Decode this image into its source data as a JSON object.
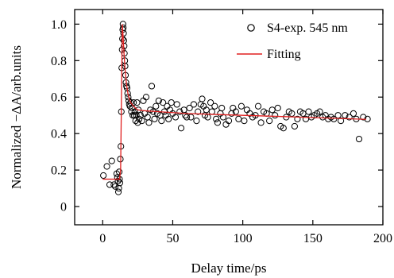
{
  "chart_data": {
    "type": "scatter",
    "title": "",
    "xlabel": "Delay time/ps",
    "ylabel": "Normalized −ΔA/arb.units",
    "xlim": [
      -20,
      200
    ],
    "ylim": [
      -0.1,
      1.08
    ],
    "xticks": [
      0,
      50,
      100,
      150,
      200
    ],
    "xtick_labels": [
      "0",
      "50",
      "100",
      "150",
      "200"
    ],
    "yticks": [
      0,
      0.2,
      0.4,
      0.6,
      0.8,
      1.0
    ],
    "ytick_labels": [
      "0",
      "0.2",
      "0.4",
      "0.6",
      "0.8",
      "1.0"
    ],
    "legend_position": "top-right",
    "grid": false,
    "series": [
      {
        "name": "S4-exp. 545 nm",
        "kind": "scatter",
        "marker": "open-circle",
        "color": "#000000",
        "points": [
          [
            0.5,
            0.17
          ],
          [
            3,
            0.22
          ],
          [
            5,
            0.12
          ],
          [
            6.5,
            0.25
          ],
          [
            8,
            0.12
          ],
          [
            9,
            0.11
          ],
          [
            10,
            0.18
          ],
          [
            10.5,
            0.16
          ],
          [
            11,
            0.14
          ],
          [
            11.2,
            0.08
          ],
          [
            11.5,
            0.1
          ],
          [
            11.8,
            0.19
          ],
          [
            12,
            0.15
          ],
          [
            12.3,
            0.13
          ],
          [
            12.6,
            0.26
          ],
          [
            13,
            0.33
          ],
          [
            13.3,
            0.52
          ],
          [
            13.6,
            0.76
          ],
          [
            13.9,
            0.86
          ],
          [
            14.1,
            0.92
          ],
          [
            14.3,
            0.97
          ],
          [
            14.5,
            1.0
          ],
          [
            14.7,
            0.98
          ],
          [
            14.9,
            0.95
          ],
          [
            15.1,
            0.91
          ],
          [
            15.3,
            0.88
          ],
          [
            15.5,
            0.84
          ],
          [
            15.8,
            0.8
          ],
          [
            16,
            0.77
          ],
          [
            16.3,
            0.72
          ],
          [
            16.6,
            0.68
          ],
          [
            17,
            0.66
          ],
          [
            17.4,
            0.65
          ],
          [
            17.8,
            0.62
          ],
          [
            18.2,
            0.6
          ],
          [
            18.6,
            0.58
          ],
          [
            19,
            0.56
          ],
          [
            19.5,
            0.55
          ],
          [
            20,
            0.57
          ],
          [
            20.5,
            0.52
          ],
          [
            21,
            0.54
          ],
          [
            21.5,
            0.5
          ],
          [
            22,
            0.57
          ],
          [
            22.5,
            0.5
          ],
          [
            23,
            0.52
          ],
          [
            23.5,
            0.47
          ],
          [
            24,
            0.5
          ],
          [
            24.5,
            0.57
          ],
          [
            25,
            0.46
          ],
          [
            25.5,
            0.53
          ],
          [
            26,
            0.48
          ],
          [
            27,
            0.5
          ],
          [
            28,
            0.47
          ],
          [
            29,
            0.58
          ],
          [
            30,
            0.51
          ],
          [
            31,
            0.6
          ],
          [
            32,
            0.49
          ],
          [
            33,
            0.46
          ],
          [
            34,
            0.53
          ],
          [
            35,
            0.66
          ],
          [
            36,
            0.52
          ],
          [
            37,
            0.48
          ],
          [
            38,
            0.55
          ],
          [
            39,
            0.51
          ],
          [
            40,
            0.58
          ],
          [
            41,
            0.5
          ],
          [
            42,
            0.47
          ],
          [
            43,
            0.57
          ],
          [
            44,
            0.52
          ],
          [
            45,
            0.5
          ],
          [
            46,
            0.55
          ],
          [
            47,
            0.48
          ],
          [
            48,
            0.53
          ],
          [
            49,
            0.57
          ],
          [
            50,
            0.51
          ],
          [
            52,
            0.49
          ],
          [
            53,
            0.56
          ],
          [
            55,
            0.52
          ],
          [
            56,
            0.43
          ],
          [
            58,
            0.53
          ],
          [
            59,
            0.5
          ],
          [
            60,
            0.49
          ],
          [
            62,
            0.54
          ],
          [
            63,
            0.49
          ],
          [
            65,
            0.56
          ],
          [
            67,
            0.47
          ],
          [
            68,
            0.52
          ],
          [
            70,
            0.56
          ],
          [
            71,
            0.59
          ],
          [
            72,
            0.55
          ],
          [
            73,
            0.5
          ],
          [
            74,
            0.53
          ],
          [
            75,
            0.49
          ],
          [
            77,
            0.57
          ],
          [
            78,
            0.52
          ],
          [
            80,
            0.55
          ],
          [
            81,
            0.48
          ],
          [
            82,
            0.46
          ],
          [
            84,
            0.51
          ],
          [
            85,
            0.54
          ],
          [
            86,
            0.49
          ],
          [
            88,
            0.45
          ],
          [
            90,
            0.47
          ],
          [
            92,
            0.51
          ],
          [
            93,
            0.54
          ],
          [
            95,
            0.52
          ],
          [
            97,
            0.48
          ],
          [
            99,
            0.55
          ],
          [
            101,
            0.47
          ],
          [
            103,
            0.53
          ],
          [
            105,
            0.51
          ],
          [
            107,
            0.49
          ],
          [
            109,
            0.5
          ],
          [
            111,
            0.55
          ],
          [
            113,
            0.46
          ],
          [
            115,
            0.52
          ],
          [
            117,
            0.51
          ],
          [
            119,
            0.47
          ],
          [
            121,
            0.53
          ],
          [
            123,
            0.5
          ],
          [
            125,
            0.54
          ],
          [
            127,
            0.44
          ],
          [
            129,
            0.43
          ],
          [
            131,
            0.49
          ],
          [
            133,
            0.52
          ],
          [
            135,
            0.51
          ],
          [
            137,
            0.44
          ],
          [
            139,
            0.48
          ],
          [
            141,
            0.52
          ],
          [
            143,
            0.51
          ],
          [
            145,
            0.48
          ],
          [
            147,
            0.52
          ],
          [
            149,
            0.49
          ],
          [
            151,
            0.5
          ],
          [
            153,
            0.51
          ],
          [
            155,
            0.52
          ],
          [
            157,
            0.49
          ],
          [
            159,
            0.5
          ],
          [
            161,
            0.48
          ],
          [
            163,
            0.49
          ],
          [
            165,
            0.48
          ],
          [
            168,
            0.5
          ],
          [
            170,
            0.47
          ],
          [
            173,
            0.5
          ],
          [
            176,
            0.49
          ],
          [
            179,
            0.51
          ],
          [
            181,
            0.48
          ],
          [
            183,
            0.37
          ],
          [
            186,
            0.49
          ],
          [
            189,
            0.48
          ]
        ]
      },
      {
        "name": "Fitting",
        "kind": "line",
        "color": "#e02020",
        "points": [
          [
            0,
            0.15
          ],
          [
            10,
            0.15
          ],
          [
            12,
            0.15
          ],
          [
            12.8,
            0.2
          ],
          [
            13.4,
            0.6
          ],
          [
            14.0,
            1.0
          ],
          [
            14.6,
            0.93
          ],
          [
            15.3,
            0.83
          ],
          [
            16,
            0.75
          ],
          [
            17,
            0.67
          ],
          [
            18,
            0.62
          ],
          [
            19,
            0.59
          ],
          [
            20,
            0.57
          ],
          [
            22,
            0.55
          ],
          [
            25,
            0.53
          ],
          [
            30,
            0.525
          ],
          [
            40,
            0.52
          ],
          [
            60,
            0.51
          ],
          [
            80,
            0.505
          ],
          [
            100,
            0.5
          ],
          [
            130,
            0.493
          ],
          [
            160,
            0.485
          ],
          [
            188,
            0.478
          ]
        ]
      }
    ]
  }
}
